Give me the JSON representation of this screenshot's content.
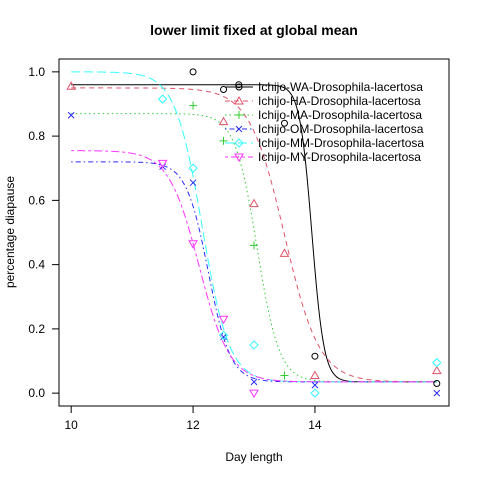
{
  "chart_data": {
    "type": "scatter",
    "title": "lower limit fixed at global mean",
    "xlabel": "Day length",
    "ylabel": "percentage diapause",
    "xlim": [
      9.8,
      16.2
    ],
    "ylim": [
      -0.04,
      1.04
    ],
    "xticks": [
      10,
      12,
      14
    ],
    "yticks": [
      0.0,
      0.2,
      0.4,
      0.6,
      0.8,
      1.0
    ],
    "xtick_labels": [
      "10",
      "12",
      "14"
    ],
    "ytick_labels": [
      "0.0",
      "0.2",
      "0.4",
      "0.6",
      "0.8",
      "1.0"
    ],
    "legend_position": "top-right",
    "lower_limit": 0.035,
    "series": [
      {
        "name": "Ichijo-WA-Drosophila-lacertosa",
        "color": "#000000",
        "marker": "circle",
        "line_style": "solid",
        "upper": 0.96,
        "midpoint": 13.95,
        "slope": 10,
        "points": [
          [
            12,
            1.0
          ],
          [
            12.5,
            0.945
          ],
          [
            12.75,
            0.96
          ],
          [
            13.5,
            0.84
          ],
          [
            14,
            0.115
          ],
          [
            16,
            0.03
          ]
        ]
      },
      {
        "name": "Ichijo-HA-Drosophila-lacertosa",
        "color": "#df536b",
        "marker": "triangle",
        "line_style": "dashed",
        "upper": 0.95,
        "midpoint": 13.5,
        "slope": 3.5,
        "points": [
          [
            10,
            0.955
          ],
          [
            12.5,
            0.845
          ],
          [
            13,
            0.59
          ],
          [
            13.5,
            0.435
          ],
          [
            14,
            0.055
          ],
          [
            16,
            0.07
          ]
        ]
      },
      {
        "name": "Ichijo-MA-Drosophila-lacertosa",
        "color": "#33cc33",
        "marker": "plus",
        "line_style": "dotted",
        "upper": 0.87,
        "midpoint": 13.05,
        "slope": 5.5,
        "points": [
          [
            12,
            0.895
          ],
          [
            12.5,
            0.785
          ],
          [
            13,
            0.46
          ],
          [
            13.5,
            0.055
          ]
        ]
      },
      {
        "name": "Ichijo-OM-Drosophila-lacertosa",
        "color": "#2a2aff",
        "marker": "x",
        "line_style": "dotdash",
        "upper": 0.72,
        "midpoint": 12.25,
        "slope": 5.5,
        "points": [
          [
            10,
            0.865
          ],
          [
            11.5,
            0.705
          ],
          [
            12,
            0.655
          ],
          [
            12.5,
            0.175
          ],
          [
            13,
            0.035
          ],
          [
            14,
            0.025
          ],
          [
            16,
            0.0
          ]
        ]
      },
      {
        "name": "Ichijo-MM-Drosophila-lacertosa",
        "color": "#33ffff",
        "marker": "diamond",
        "line_style": "longdash",
        "upper": 1.0,
        "midpoint": 12.15,
        "slope": 4.5,
        "points": [
          [
            11.5,
            0.915
          ],
          [
            12,
            0.7
          ],
          [
            12.5,
            0.18
          ],
          [
            13,
            0.15
          ],
          [
            14,
            0.0
          ],
          [
            16,
            0.095
          ]
        ]
      },
      {
        "name": "Ichijo-MY-Drosophila-lacertosa",
        "color": "#ff33ff",
        "marker": "triangle-down",
        "line_style": "twodash",
        "upper": 0.755,
        "midpoint": 12.1,
        "slope": 4.0,
        "points": [
          [
            11.5,
            0.715
          ],
          [
            12,
            0.465
          ],
          [
            12.5,
            0.23
          ],
          [
            13,
            0.0
          ]
        ]
      }
    ]
  }
}
